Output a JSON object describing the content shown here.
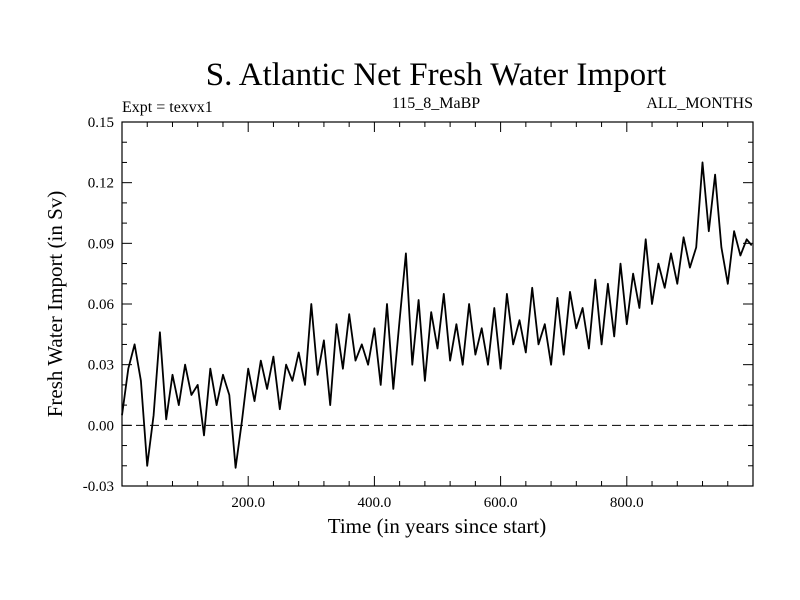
{
  "chart_data": {
    "type": "line",
    "title": "S. Atlantic Net Fresh Water Import",
    "subtitle_left": "Expt = texvx1",
    "subtitle_center": "115_8_MaBP",
    "subtitle_right": "ALL_MONTHS",
    "xlabel": "Time (in years since start)",
    "ylabel": "Fresh Water Import (in Sv)",
    "xlim": [
      0,
      1000
    ],
    "ylim": [
      -0.03,
      0.15
    ],
    "x_ticks": [
      200,
      400,
      600,
      800
    ],
    "x_tick_labels": [
      "200.0",
      "400.0",
      "600.0",
      "800.0"
    ],
    "y_ticks": [
      -0.03,
      0.0,
      0.03,
      0.06,
      0.09,
      0.12,
      0.15
    ],
    "y_tick_labels": [
      "-0.03",
      "0.00",
      "0.03",
      "0.06",
      "0.09",
      "0.12",
      "0.15"
    ],
    "reference_line": {
      "y": 0.0,
      "style": "dashed"
    },
    "grid": false,
    "series": [
      {
        "name": "Net fresh water import",
        "color": "#000000",
        "x": [
          0,
          10,
          20,
          30,
          40,
          50,
          60,
          70,
          80,
          90,
          100,
          110,
          120,
          130,
          140,
          150,
          160,
          170,
          180,
          190,
          200,
          210,
          220,
          230,
          240,
          250,
          260,
          270,
          280,
          290,
          300,
          310,
          320,
          330,
          340,
          350,
          360,
          370,
          380,
          390,
          400,
          410,
          420,
          430,
          440,
          450,
          460,
          470,
          480,
          490,
          500,
          510,
          520,
          530,
          540,
          550,
          560,
          570,
          580,
          590,
          600,
          610,
          620,
          630,
          640,
          650,
          660,
          670,
          680,
          690,
          700,
          710,
          720,
          730,
          740,
          750,
          760,
          770,
          780,
          790,
          800,
          810,
          820,
          830,
          840,
          850,
          860,
          870,
          880,
          890,
          900,
          910,
          920,
          930,
          940,
          950,
          960,
          970,
          980,
          990,
          998
        ],
        "values": [
          0.005,
          0.028,
          0.04,
          0.022,
          -0.02,
          0.005,
          0.046,
          0.003,
          0.025,
          0.01,
          0.03,
          0.015,
          0.02,
          -0.005,
          0.028,
          0.01,
          0.025,
          0.015,
          -0.021,
          0.002,
          0.028,
          0.012,
          0.032,
          0.018,
          0.034,
          0.008,
          0.03,
          0.022,
          0.036,
          0.02,
          0.06,
          0.025,
          0.042,
          0.01,
          0.05,
          0.028,
          0.055,
          0.032,
          0.04,
          0.03,
          0.048,
          0.02,
          0.06,
          0.018,
          0.052,
          0.085,
          0.03,
          0.062,
          0.022,
          0.056,
          0.038,
          0.065,
          0.032,
          0.05,
          0.03,
          0.06,
          0.035,
          0.048,
          0.03,
          0.058,
          0.028,
          0.065,
          0.04,
          0.052,
          0.036,
          0.068,
          0.04,
          0.05,
          0.03,
          0.063,
          0.035,
          0.066,
          0.048,
          0.058,
          0.038,
          0.072,
          0.04,
          0.07,
          0.044,
          0.08,
          0.05,
          0.075,
          0.058,
          0.092,
          0.06,
          0.08,
          0.068,
          0.085,
          0.07,
          0.093,
          0.078,
          0.088,
          0.13,
          0.096,
          0.124,
          0.088,
          0.07,
          0.096,
          0.084,
          0.092,
          0.089
        ]
      }
    ]
  }
}
